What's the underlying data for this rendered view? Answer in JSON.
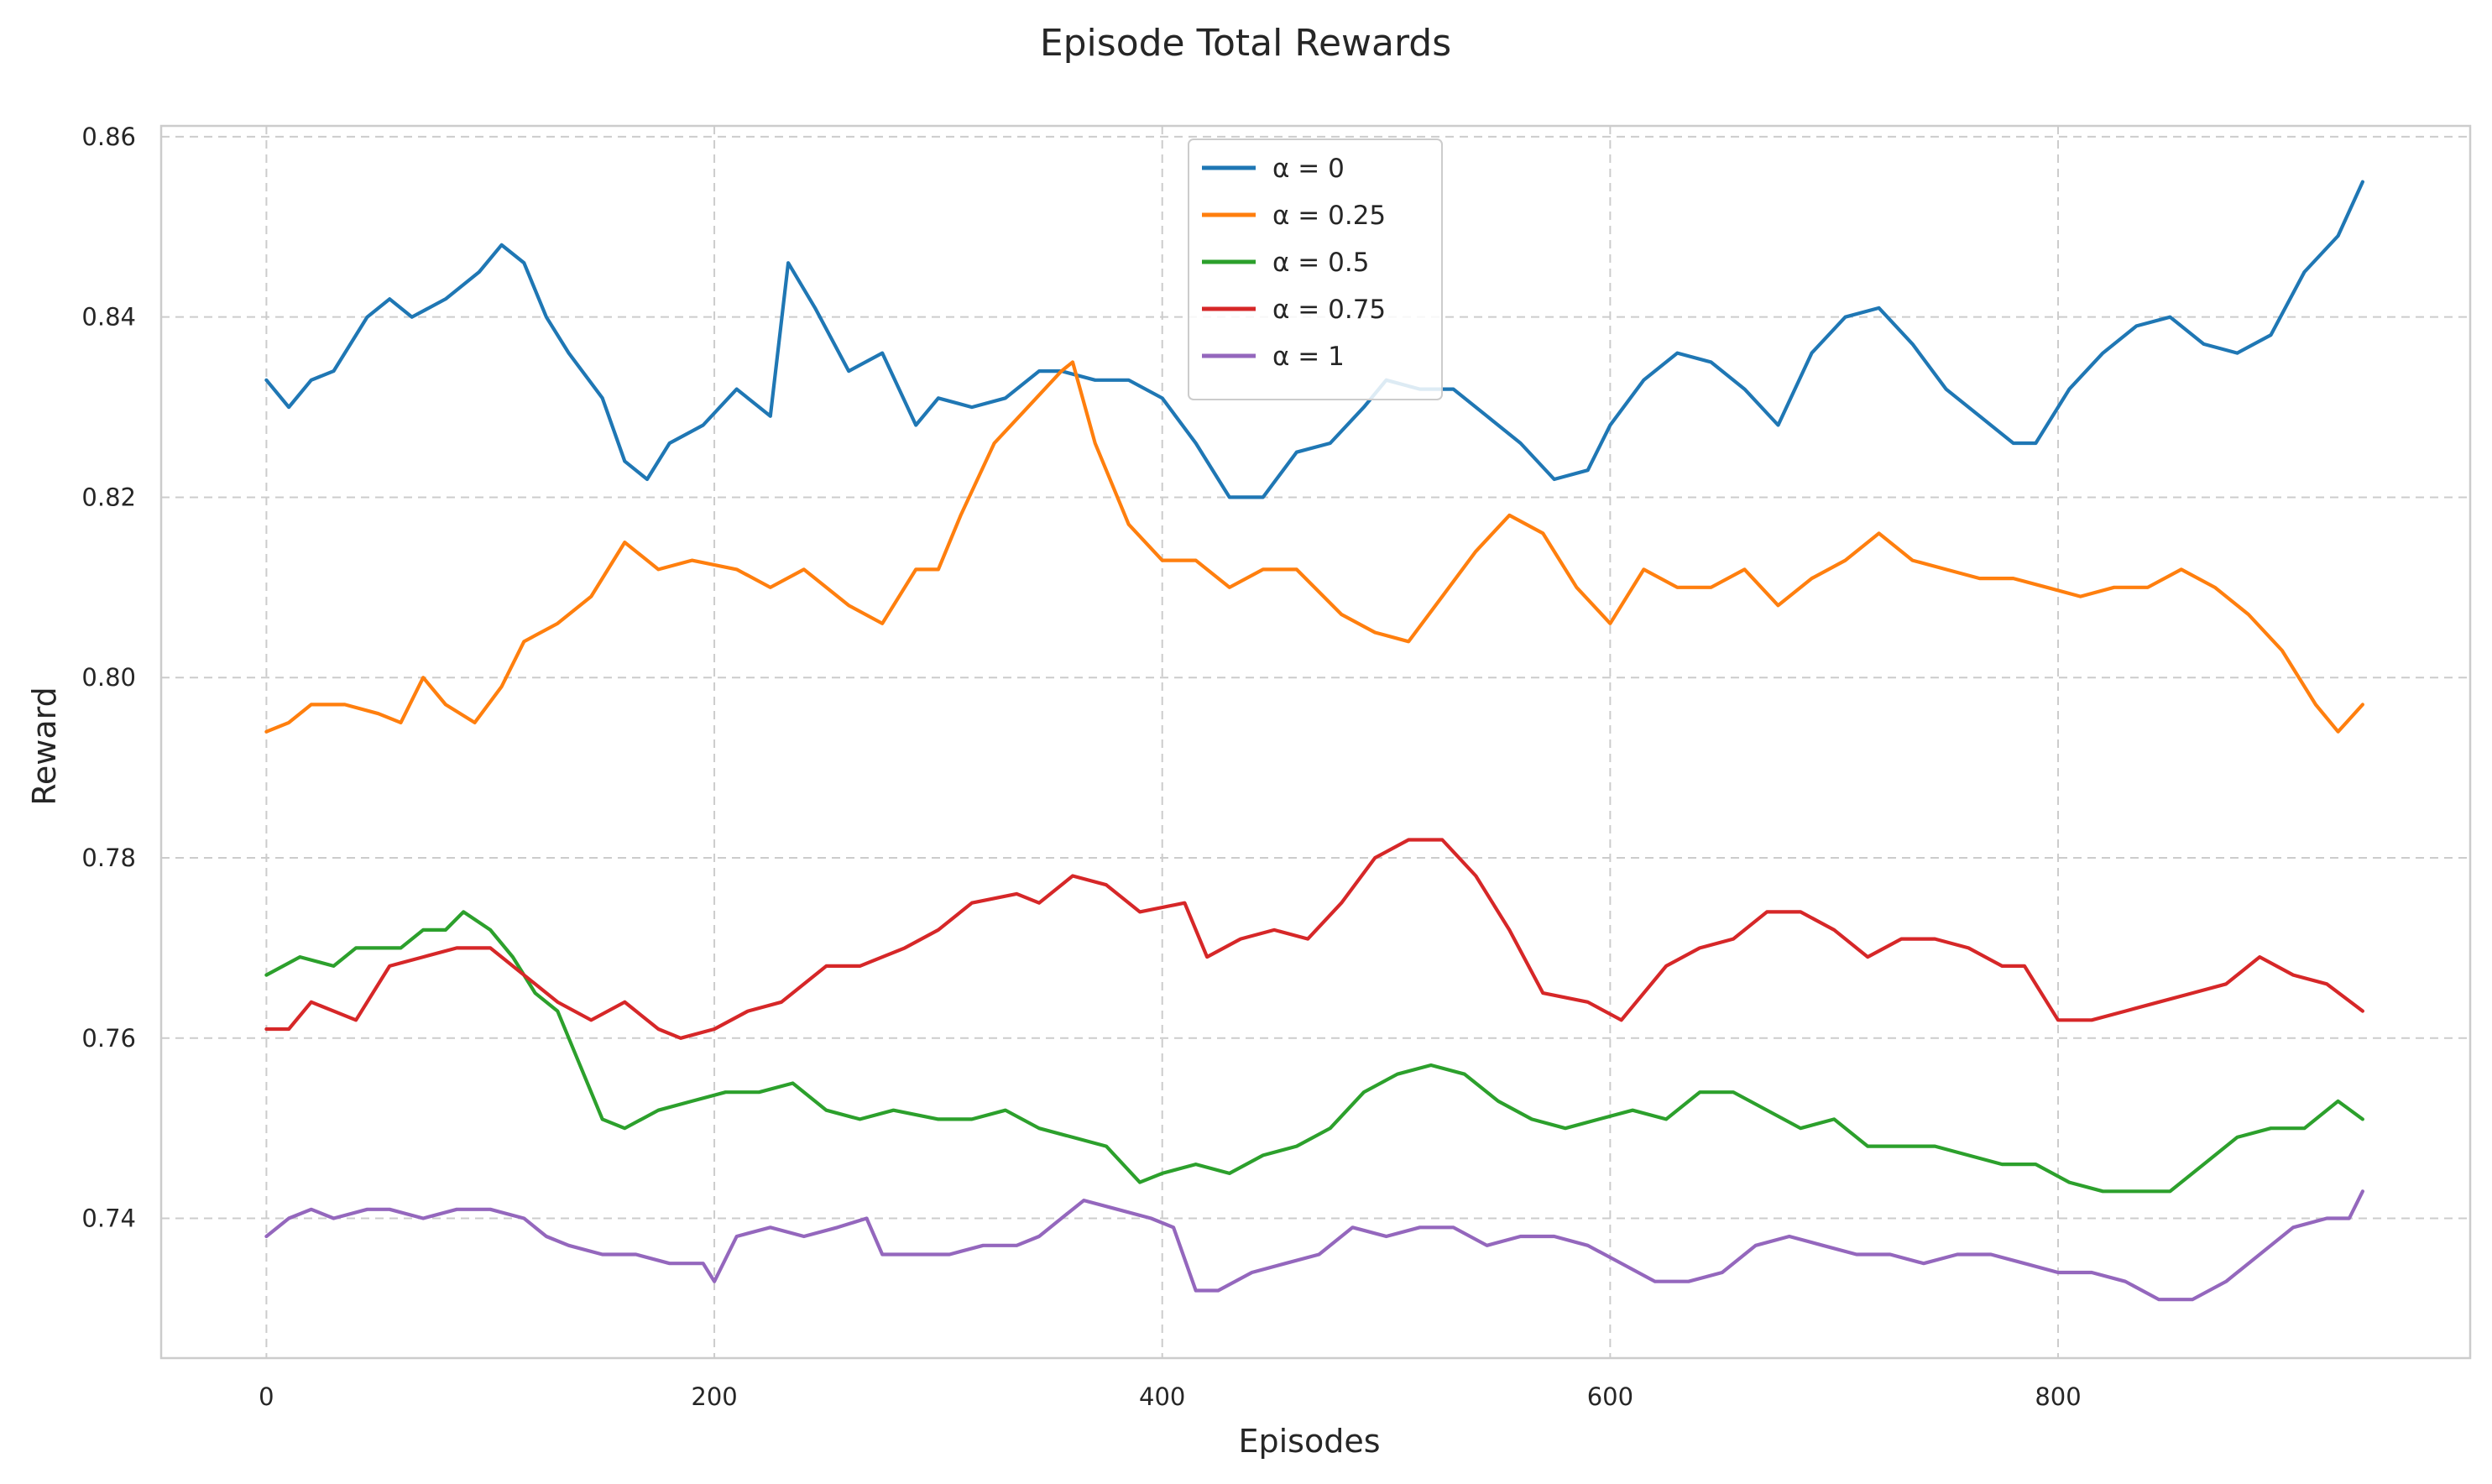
{
  "chart_data": {
    "type": "line",
    "title": "Episode Total Rewards",
    "xlabel": "Episodes",
    "ylabel": "Reward",
    "xlim": [
      -47,
      984
    ],
    "ylim": [
      0.7245,
      0.8612
    ],
    "xticks": [
      0,
      200,
      400,
      600,
      800
    ],
    "xtick_labels": [
      "0",
      "200",
      "400",
      "600",
      "800"
    ],
    "yticks": [
      0.74,
      0.76,
      0.78,
      0.8,
      0.82,
      0.84,
      0.86
    ],
    "ytick_labels": [
      "0.74",
      "0.76",
      "0.78",
      "0.80",
      "0.82",
      "0.84",
      "0.86"
    ],
    "grid": true,
    "legend_position": "top-center",
    "series": [
      {
        "name": "α = 0",
        "color": "#1f77b4",
        "x": [
          0,
          10,
          20,
          30,
          45,
          55,
          65,
          80,
          95,
          105,
          115,
          125,
          135,
          150,
          160,
          170,
          180,
          195,
          210,
          225,
          233,
          245,
          260,
          275,
          290,
          300,
          315,
          330,
          345,
          355,
          370,
          385,
          400,
          415,
          430,
          445,
          460,
          475,
          490,
          500,
          515,
          530,
          545,
          560,
          575,
          590,
          600,
          615,
          630,
          645,
          660,
          675,
          690,
          705,
          720,
          735,
          750,
          765,
          780,
          790,
          805,
          820,
          835,
          850,
          865,
          880,
          895,
          910,
          925,
          936
        ],
        "y": [
          0.833,
          0.83,
          0.833,
          0.834,
          0.84,
          0.842,
          0.84,
          0.842,
          0.845,
          0.848,
          0.846,
          0.84,
          0.836,
          0.831,
          0.824,
          0.822,
          0.826,
          0.828,
          0.832,
          0.829,
          0.846,
          0.841,
          0.834,
          0.836,
          0.828,
          0.831,
          0.83,
          0.831,
          0.834,
          0.834,
          0.833,
          0.833,
          0.831,
          0.826,
          0.82,
          0.82,
          0.825,
          0.826,
          0.83,
          0.833,
          0.832,
          0.832,
          0.829,
          0.826,
          0.822,
          0.823,
          0.828,
          0.833,
          0.836,
          0.835,
          0.832,
          0.828,
          0.836,
          0.84,
          0.841,
          0.837,
          0.832,
          0.829,
          0.826,
          0.826,
          0.832,
          0.836,
          0.839,
          0.84,
          0.837,
          0.836,
          0.838,
          0.845,
          0.849,
          0.855
        ]
      },
      {
        "name": "α = 0.25",
        "color": "#ff7f0e",
        "x": [
          0,
          10,
          20,
          35,
          50,
          60,
          70,
          80,
          93,
          105,
          115,
          130,
          145,
          160,
          175,
          190,
          210,
          225,
          240,
          260,
          275,
          290,
          300,
          310,
          325,
          340,
          355,
          360,
          370,
          385,
          400,
          415,
          430,
          445,
          460,
          480,
          495,
          510,
          525,
          540,
          555,
          570,
          585,
          600,
          615,
          630,
          645,
          660,
          675,
          690,
          705,
          720,
          735,
          750,
          765,
          780,
          795,
          810,
          825,
          840,
          855,
          870,
          885,
          900,
          915,
          925,
          936
        ],
        "y": [
          0.794,
          0.795,
          0.797,
          0.797,
          0.796,
          0.795,
          0.8,
          0.797,
          0.795,
          0.799,
          0.804,
          0.806,
          0.809,
          0.815,
          0.812,
          0.813,
          0.812,
          0.81,
          0.812,
          0.808,
          0.806,
          0.812,
          0.812,
          0.818,
          0.826,
          0.83,
          0.834,
          0.835,
          0.826,
          0.817,
          0.813,
          0.813,
          0.81,
          0.812,
          0.812,
          0.807,
          0.805,
          0.804,
          0.809,
          0.814,
          0.818,
          0.816,
          0.81,
          0.806,
          0.812,
          0.81,
          0.81,
          0.812,
          0.808,
          0.811,
          0.813,
          0.816,
          0.813,
          0.812,
          0.811,
          0.811,
          0.81,
          0.809,
          0.81,
          0.81,
          0.812,
          0.81,
          0.807,
          0.803,
          0.797,
          0.794,
          0.797
        ]
      },
      {
        "name": "α = 0.5",
        "color": "#2ca02c",
        "x": [
          0,
          15,
          30,
          40,
          50,
          60,
          70,
          80,
          88,
          100,
          110,
          120,
          130,
          140,
          150,
          160,
          175,
          190,
          205,
          220,
          235,
          250,
          265,
          280,
          300,
          315,
          330,
          345,
          360,
          375,
          390,
          400,
          415,
          430,
          445,
          460,
          475,
          490,
          505,
          520,
          535,
          550,
          565,
          580,
          595,
          610,
          625,
          640,
          655,
          670,
          685,
          700,
          715,
          730,
          745,
          760,
          775,
          790,
          805,
          820,
          835,
          850,
          865,
          880,
          895,
          910,
          925,
          936
        ],
        "y": [
          0.767,
          0.769,
          0.768,
          0.77,
          0.77,
          0.77,
          0.772,
          0.772,
          0.774,
          0.772,
          0.769,
          0.765,
          0.763,
          0.757,
          0.751,
          0.75,
          0.752,
          0.753,
          0.754,
          0.754,
          0.755,
          0.752,
          0.751,
          0.752,
          0.751,
          0.751,
          0.752,
          0.75,
          0.749,
          0.748,
          0.744,
          0.745,
          0.746,
          0.745,
          0.747,
          0.748,
          0.75,
          0.754,
          0.756,
          0.757,
          0.756,
          0.753,
          0.751,
          0.75,
          0.751,
          0.752,
          0.751,
          0.754,
          0.754,
          0.752,
          0.75,
          0.751,
          0.748,
          0.748,
          0.748,
          0.747,
          0.746,
          0.746,
          0.744,
          0.743,
          0.743,
          0.743,
          0.746,
          0.749,
          0.75,
          0.75,
          0.753,
          0.751
        ]
      },
      {
        "name": "α = 0.75",
        "color": "#d62728",
        "x": [
          0,
          10,
          20,
          30,
          40,
          55,
          70,
          85,
          100,
          115,
          130,
          145,
          160,
          175,
          185,
          200,
          215,
          230,
          250,
          265,
          285,
          300,
          315,
          335,
          345,
          360,
          375,
          390,
          410,
          420,
          435,
          450,
          465,
          480,
          495,
          510,
          525,
          540,
          555,
          570,
          590,
          605,
          625,
          640,
          655,
          670,
          685,
          700,
          715,
          730,
          745,
          760,
          775,
          785,
          800,
          815,
          830,
          845,
          860,
          875,
          890,
          905,
          920,
          936
        ],
        "y": [
          0.761,
          0.761,
          0.764,
          0.763,
          0.762,
          0.768,
          0.769,
          0.77,
          0.77,
          0.767,
          0.764,
          0.762,
          0.764,
          0.761,
          0.76,
          0.761,
          0.763,
          0.764,
          0.768,
          0.768,
          0.77,
          0.772,
          0.775,
          0.776,
          0.775,
          0.778,
          0.777,
          0.774,
          0.775,
          0.769,
          0.771,
          0.772,
          0.771,
          0.775,
          0.78,
          0.782,
          0.782,
          0.778,
          0.772,
          0.765,
          0.764,
          0.762,
          0.768,
          0.77,
          0.771,
          0.774,
          0.774,
          0.772,
          0.769,
          0.771,
          0.771,
          0.77,
          0.768,
          0.768,
          0.762,
          0.762,
          0.763,
          0.764,
          0.765,
          0.766,
          0.769,
          0.767,
          0.766,
          0.763
        ]
      },
      {
        "name": "α = 1",
        "color": "#9467bd",
        "x": [
          0,
          10,
          20,
          30,
          45,
          55,
          70,
          85,
          100,
          115,
          125,
          135,
          150,
          165,
          180,
          195,
          200,
          210,
          225,
          240,
          255,
          268,
          275,
          290,
          305,
          320,
          335,
          345,
          355,
          365,
          380,
          395,
          405,
          415,
          425,
          440,
          455,
          470,
          485,
          500,
          515,
          530,
          545,
          560,
          575,
          590,
          605,
          620,
          635,
          650,
          665,
          680,
          695,
          710,
          725,
          740,
          755,
          770,
          785,
          800,
          815,
          830,
          845,
          860,
          875,
          890,
          905,
          920,
          930,
          936
        ],
        "y": [
          0.738,
          0.74,
          0.741,
          0.74,
          0.741,
          0.741,
          0.74,
          0.741,
          0.741,
          0.74,
          0.738,
          0.737,
          0.736,
          0.736,
          0.735,
          0.735,
          0.733,
          0.738,
          0.739,
          0.738,
          0.739,
          0.74,
          0.736,
          0.736,
          0.736,
          0.737,
          0.737,
          0.738,
          0.74,
          0.742,
          0.741,
          0.74,
          0.739,
          0.732,
          0.732,
          0.734,
          0.735,
          0.736,
          0.739,
          0.738,
          0.739,
          0.739,
          0.737,
          0.738,
          0.738,
          0.737,
          0.735,
          0.733,
          0.733,
          0.734,
          0.737,
          0.738,
          0.737,
          0.736,
          0.736,
          0.735,
          0.736,
          0.736,
          0.735,
          0.734,
          0.734,
          0.733,
          0.731,
          0.731,
          0.733,
          0.736,
          0.739,
          0.74,
          0.74,
          0.743
        ]
      }
    ]
  }
}
